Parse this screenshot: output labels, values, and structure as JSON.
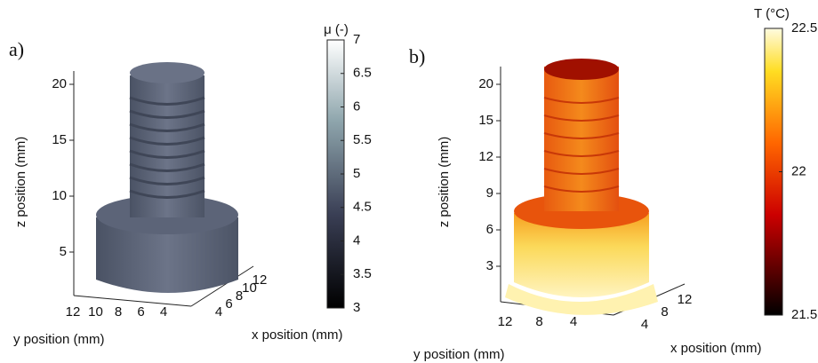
{
  "panels": [
    {
      "label": "a)",
      "z_label": "z position (mm)",
      "y_label": "y position (mm)",
      "x_label": "x position (mm)",
      "z_ticks": [
        5,
        10,
        15,
        20
      ],
      "y_ticks": [
        12,
        10,
        8,
        6,
        4
      ],
      "x_ticks": [
        4,
        6,
        8,
        10,
        12
      ],
      "colorbar": {
        "label": "μ (-)",
        "lim": [
          3,
          7
        ],
        "ticks": [
          3,
          3.5,
          4,
          4.5,
          5,
          5.5,
          6,
          6.5,
          7
        ]
      }
    },
    {
      "label": "b)",
      "z_label": "z position (mm)",
      "y_label": "y position (mm)",
      "x_label": "x position (mm)",
      "z_ticks": [
        3,
        6,
        9,
        12,
        15,
        20
      ],
      "y_ticks": [
        12,
        8,
        4
      ],
      "x_ticks": [
        4,
        8,
        12
      ],
      "colorbar": {
        "label": "T (°C)",
        "lim": [
          21.5,
          22.5
        ],
        "ticks": [
          21.5,
          22,
          22.5
        ]
      }
    }
  ]
}
